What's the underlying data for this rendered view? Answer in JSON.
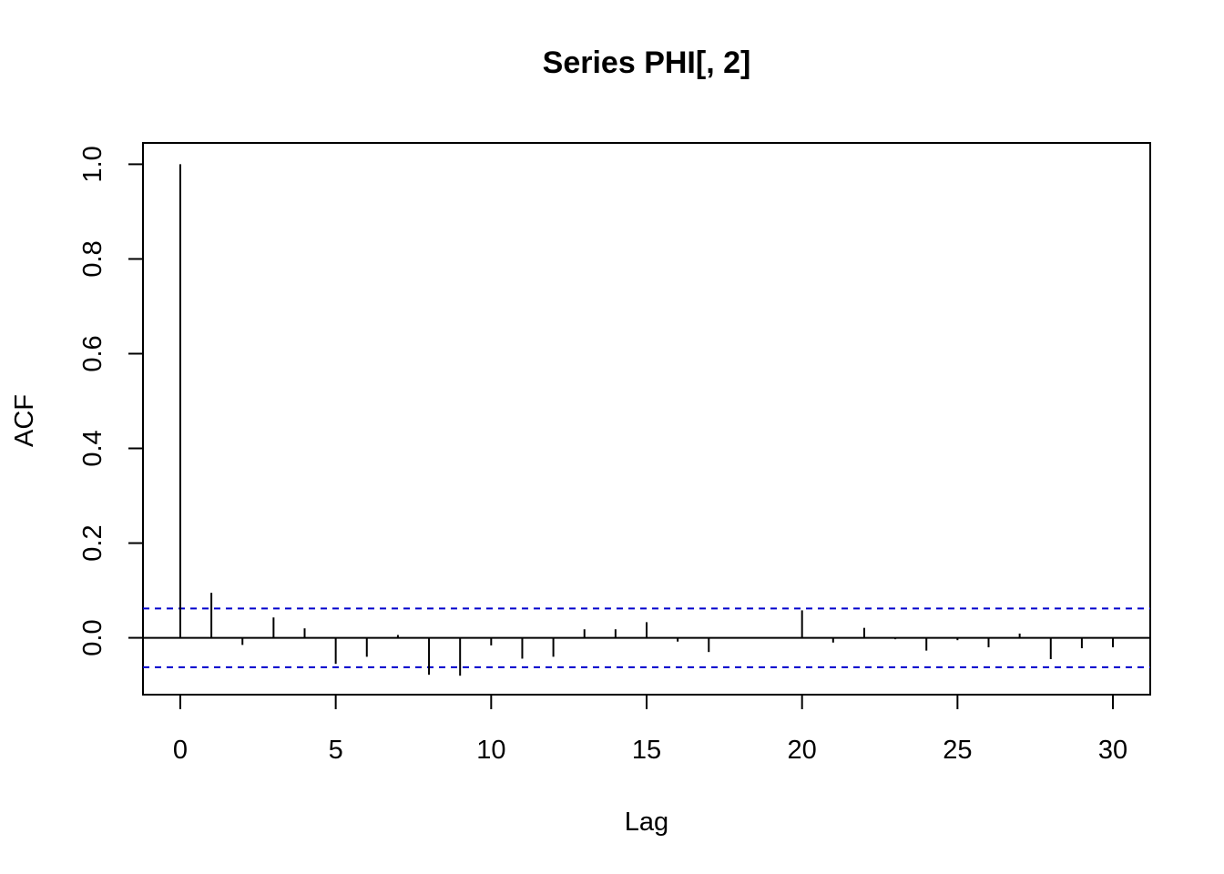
{
  "chart_data": {
    "type": "bar",
    "title": "Series  PHI[, 2]",
    "xlabel": "Lag",
    "ylabel": "ACF",
    "xlim": [
      -1.2,
      31.2
    ],
    "ylim": [
      -0.12,
      1.045
    ],
    "x_ticks": [
      0,
      5,
      10,
      15,
      20,
      25,
      30
    ],
    "y_ticks": [
      0.0,
      0.2,
      0.4,
      0.6,
      0.8,
      1.0
    ],
    "y_tick_labels": [
      "0.0",
      "0.2",
      "0.4",
      "0.6",
      "0.8",
      "1.0"
    ],
    "grid": false,
    "confidence_band": 0.062,
    "band_color": "#0000cc",
    "lags": [
      0,
      1,
      2,
      3,
      4,
      5,
      6,
      7,
      8,
      9,
      10,
      11,
      12,
      13,
      14,
      15,
      16,
      17,
      18,
      19,
      20,
      21,
      22,
      23,
      24,
      25,
      26,
      27,
      28,
      29,
      30
    ],
    "acf": [
      1.0,
      0.095,
      -0.015,
      0.043,
      0.02,
      -0.055,
      -0.04,
      0.006,
      -0.078,
      -0.08,
      -0.016,
      -0.044,
      -0.04,
      0.018,
      0.018,
      0.033,
      -0.008,
      -0.03,
      0.0,
      0.0,
      0.058,
      -0.01,
      0.021,
      -0.003,
      -0.027,
      -0.005,
      -0.02,
      0.009,
      -0.045,
      -0.022,
      -0.02
    ]
  }
}
